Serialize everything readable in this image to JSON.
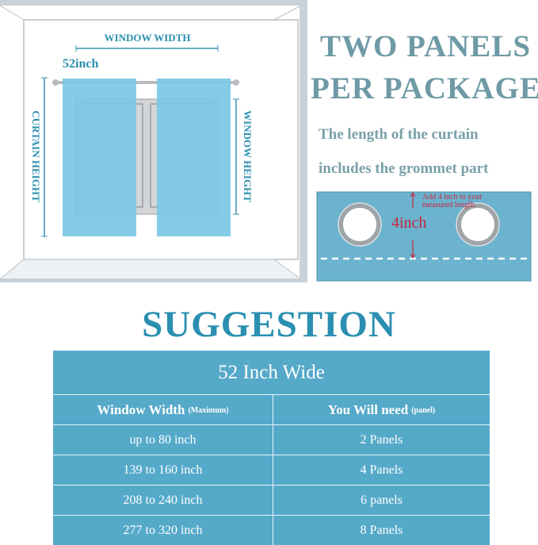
{
  "diagram": {
    "window_width_label": "WINDOW WIDTH",
    "curtain_width_label": "52inch",
    "curtain_height_label": "CURTAIN HEIGHT",
    "window_height_label": "WINDOW HEIGHT"
  },
  "headline": {
    "line1": "TWO PANELS",
    "line2": "PER PACKAGE"
  },
  "note": {
    "line1": "The length of the curtain",
    "line2": "includes the grommet  part"
  },
  "grommet": {
    "instruction_line1": "Add 4 inch to your",
    "instruction_line2": "measured length.",
    "measure": "4inch"
  },
  "suggestion_title": "SUGGESTION",
  "table": {
    "title": "52 Inch Wide",
    "headers": [
      {
        "label": "Window Width",
        "note": "(Maximum)"
      },
      {
        "label": "You Will need",
        "note": "(panel)"
      }
    ],
    "rows": [
      [
        "up to 80 inch",
        "2 Panels"
      ],
      [
        "139 to 160 inch",
        "4 Panels"
      ],
      [
        "208 to 240 inch",
        "6 panels"
      ],
      [
        "277 to 320 inch",
        "8 Panels"
      ]
    ]
  },
  "colors": {
    "curtain": "#7cc8e6",
    "table": "#55a9c9",
    "title": "#2a8fb0",
    "headline": "#6e9aa6",
    "accent_red": "#c8283c"
  }
}
